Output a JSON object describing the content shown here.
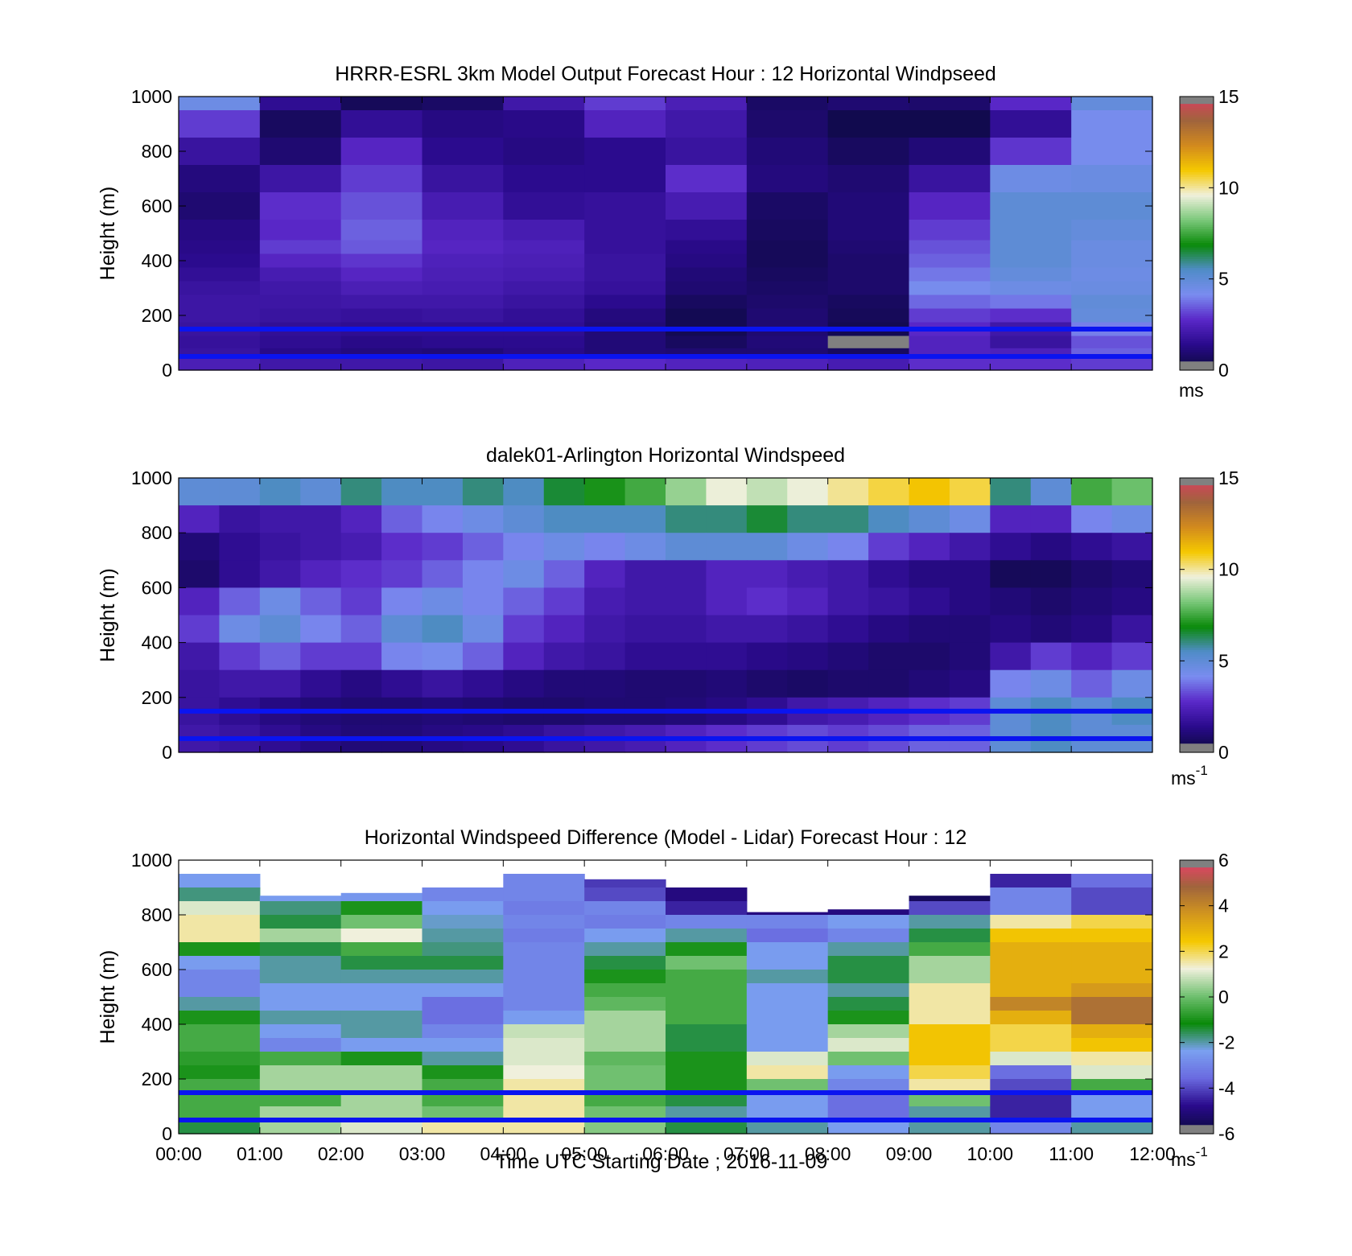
{
  "figure": {
    "xlabel": "Time UTC  Starting Date ; 2016-11-09",
    "x_ticks": [
      "00:00",
      "01:00",
      "02:00",
      "03:00",
      "04:00",
      "05:00",
      "06:00",
      "07:00",
      "08:00",
      "09:00",
      "10:00",
      "11:00",
      "12:00"
    ]
  },
  "colors": {
    "reference_line": "#0a14f0",
    "missing": "#808080",
    "no_data": "#ffffff",
    "speed_scale": [
      "#0a0a3c",
      "#2a0a8c",
      "#5a28c8",
      "#7a8cf0",
      "#508cc8",
      "#0a8a0a",
      "#7ac87a",
      "#f0f0dc",
      "#f5c800",
      "#d28a1e",
      "#a0643c",
      "#dc3c64"
    ],
    "diff_scale": [
      "#0a0a3c",
      "#2a0a8c",
      "#6a6ae0",
      "#7aa0f0",
      "#0a8a0a",
      "#70c070",
      "#f0f0dc",
      "#f5c800",
      "#d2961e",
      "#a0643c",
      "#f03c6e"
    ]
  },
  "chart_data": [
    {
      "type": "heatmap",
      "title": "HRRR-ESRL 3km Model Output   Forecast Hour : 12 Horizontal Windpseed",
      "ylabel": "Height (m)",
      "xlim": [
        0,
        12
      ],
      "ylim": [
        0,
        1000
      ],
      "y_ticks": [
        0,
        200,
        400,
        600,
        800,
        1000
      ],
      "y_tick_labels": [
        "0",
        "200",
        "400",
        "600",
        "800",
        "1000"
      ],
      "colorbar": {
        "ticks": [
          0,
          5,
          10,
          15
        ],
        "tick_labels": [
          "0",
          "5",
          "10",
          "15"
        ],
        "unit": "ms",
        "unit_sup": "",
        "range": [
          0,
          15
        ]
      },
      "reference_lines_m": [
        50,
        150
      ],
      "x_hours": [
        0,
        1,
        2,
        3,
        4,
        5,
        6,
        7,
        8,
        9,
        10,
        11
      ],
      "height_levels_m": [
        1000,
        900,
        800,
        700,
        600,
        500,
        450,
        400,
        350,
        300,
        250,
        200,
        150,
        100,
        60,
        30
      ],
      "values_ms": [
        [
          4.5,
          1.5,
          0.5,
          0.7,
          2.0,
          3.0,
          2.3,
          0.7,
          0.9,
          0.8,
          2.7,
          4.8
        ],
        [
          3.0,
          0.6,
          1.6,
          1.2,
          1.3,
          2.5,
          2.0,
          0.8,
          0.3,
          0.3,
          1.6,
          4.2
        ],
        [
          1.8,
          0.9,
          2.6,
          1.4,
          1.2,
          1.4,
          1.8,
          1.0,
          0.6,
          1.0,
          2.9,
          4.2
        ],
        [
          1.1,
          1.9,
          3.0,
          1.8,
          1.4,
          1.4,
          2.8,
          1.1,
          0.9,
          1.8,
          4.5,
          4.6
        ],
        [
          0.9,
          2.8,
          3.3,
          2.2,
          1.6,
          1.7,
          2.2,
          0.7,
          1.0,
          2.6,
          5.0,
          5.0
        ],
        [
          1.2,
          2.7,
          3.5,
          2.5,
          2.2,
          1.7,
          1.6,
          0.6,
          1.0,
          3.0,
          5.0,
          4.8
        ],
        [
          1.3,
          3.0,
          3.4,
          2.6,
          2.4,
          1.7,
          1.3,
          0.5,
          0.9,
          3.3,
          5.0,
          4.6
        ],
        [
          1.4,
          2.6,
          2.9,
          2.4,
          2.3,
          1.8,
          1.2,
          0.5,
          0.8,
          3.5,
          5.0,
          4.6
        ],
        [
          1.6,
          2.2,
          2.6,
          2.3,
          2.2,
          1.8,
          1.0,
          0.6,
          0.8,
          3.8,
          4.8,
          4.5
        ],
        [
          1.8,
          2.0,
          2.3,
          2.2,
          2.0,
          1.7,
          0.9,
          0.7,
          0.8,
          4.2,
          4.5,
          4.6
        ],
        [
          1.9,
          1.9,
          2.0,
          2.0,
          1.8,
          1.4,
          0.6,
          0.8,
          0.6,
          3.6,
          3.8,
          4.9
        ],
        [
          1.9,
          1.8,
          1.7,
          1.8,
          1.6,
          1.1,
          0.4,
          0.9,
          0.5,
          3.0,
          2.8,
          4.8
        ],
        [
          1.8,
          1.6,
          1.5,
          1.5,
          1.5,
          1.0,
          0.4,
          0.9,
          0.4,
          2.7,
          2.0,
          3.9
        ],
        [
          1.7,
          1.5,
          1.3,
          1.4,
          1.4,
          1.0,
          0.6,
          1.0,
          -1.0,
          2.5,
          1.8,
          3.3
        ],
        [
          1.8,
          1.3,
          1.1,
          1.0,
          1.3,
          1.0,
          0.9,
          0.9,
          0.6,
          2.5,
          2.4,
          3.5
        ],
        [
          2.3,
          2.0,
          2.0,
          1.9,
          2.4,
          2.7,
          2.5,
          2.4,
          2.2,
          2.8,
          2.8,
          3.0
        ]
      ]
    },
    {
      "type": "heatmap",
      "title": "dalek01-Arlington  Horizontal Windspeed",
      "ylabel": "Height (m)",
      "xlim": [
        0,
        12
      ],
      "ylim": [
        0,
        1000
      ],
      "y_ticks": [
        0,
        200,
        400,
        600,
        800,
        1000
      ],
      "y_tick_labels": [
        "0",
        "200",
        "400",
        "600",
        "800",
        "1000"
      ],
      "colorbar": {
        "ticks": [
          0,
          5,
          10,
          15
        ],
        "tick_labels": [
          "0",
          "5",
          "10",
          "15"
        ],
        "unit": "ms",
        "unit_sup": "-1",
        "range": [
          0,
          15
        ]
      },
      "reference_lines_m": [
        50,
        150
      ],
      "x_hours": [
        0.25,
        0.75,
        1.25,
        1.75,
        2.25,
        2.75,
        3.25,
        3.75,
        4.25,
        4.75,
        5.25,
        5.75,
        6.25,
        6.75,
        7.25,
        7.75,
        8.25,
        8.75,
        9.25,
        9.75,
        10.25,
        10.75,
        11.25,
        11.75
      ],
      "height_levels_m": [
        950,
        850,
        750,
        650,
        550,
        450,
        350,
        250,
        150,
        50
      ],
      "values_ms": [
        [
          5.0,
          5.0,
          5.5,
          5.0,
          6.0,
          5.5,
          5.5,
          6.0,
          5.5,
          6.5,
          7.0,
          7.5,
          8.5,
          9.5,
          9.0,
          9.5,
          10.0,
          10.5,
          11.0,
          10.5,
          6.0,
          5.0,
          7.5,
          8.0
        ],
        [
          2.5,
          1.8,
          2.0,
          2.0,
          2.5,
          3.5,
          4.0,
          4.5,
          5.0,
          5.5,
          5.5,
          5.5,
          6.0,
          6.0,
          6.5,
          6.0,
          6.0,
          5.5,
          5.0,
          4.5,
          2.5,
          2.5,
          4.0,
          4.5
        ],
        [
          1.0,
          1.5,
          1.8,
          2.0,
          2.2,
          2.8,
          3.0,
          3.5,
          4.0,
          4.5,
          4.0,
          4.5,
          5.0,
          5.0,
          5.0,
          4.5,
          4.0,
          3.0,
          2.5,
          2.0,
          1.5,
          1.2,
          1.5,
          1.8
        ],
        [
          0.8,
          1.5,
          2.0,
          2.5,
          2.8,
          3.0,
          3.5,
          4.0,
          4.5,
          3.5,
          2.5,
          2.0,
          2.0,
          2.5,
          2.5,
          2.2,
          2.0,
          1.5,
          1.2,
          1.2,
          0.5,
          0.5,
          0.8,
          1.0
        ],
        [
          2.5,
          3.5,
          4.5,
          3.5,
          3.0,
          4.0,
          4.5,
          4.0,
          3.5,
          3.0,
          2.2,
          2.0,
          2.0,
          2.5,
          2.8,
          2.5,
          2.0,
          1.8,
          1.5,
          1.2,
          1.0,
          0.8,
          1.0,
          1.2
        ],
        [
          3.0,
          4.5,
          5.0,
          4.0,
          3.5,
          5.0,
          5.5,
          4.5,
          3.0,
          2.5,
          2.0,
          1.8,
          1.8,
          2.0,
          2.0,
          1.8,
          1.5,
          1.2,
          1.0,
          1.0,
          1.2,
          1.0,
          1.2,
          1.8
        ],
        [
          2.0,
          3.0,
          3.5,
          3.0,
          3.0,
          4.0,
          4.2,
          3.5,
          2.5,
          2.0,
          1.8,
          1.5,
          1.5,
          1.5,
          1.3,
          1.2,
          1.0,
          0.8,
          0.8,
          1.0,
          2.0,
          3.0,
          2.5,
          3.0
        ],
        [
          1.8,
          2.0,
          2.0,
          1.5,
          1.2,
          1.5,
          1.8,
          1.5,
          1.2,
          1.0,
          1.0,
          0.9,
          0.9,
          1.0,
          0.8,
          0.7,
          0.8,
          0.8,
          1.0,
          1.2,
          4.0,
          4.5,
          3.5,
          4.5
        ],
        [
          1.8,
          1.5,
          1.2,
          1.0,
          0.9,
          0.9,
          1.0,
          0.9,
          0.8,
          0.8,
          0.9,
          0.9,
          1.0,
          1.2,
          1.5,
          2.0,
          2.2,
          2.5,
          2.8,
          3.0,
          5.0,
          5.5,
          5.0,
          5.5
        ],
        [
          2.0,
          1.8,
          1.5,
          1.2,
          1.0,
          1.0,
          1.2,
          1.3,
          1.5,
          1.8,
          2.0,
          2.2,
          2.5,
          2.8,
          3.0,
          3.2,
          3.0,
          3.2,
          3.5,
          3.5,
          5.0,
          5.5,
          5.0,
          5.0
        ]
      ]
    },
    {
      "type": "heatmap",
      "title": "Horizontal Windspeed Difference (Model - Lidar) Forecast Hour : 12",
      "ylabel": "Height (m)",
      "xlabel": "Time UTC  Starting Date ; 2016-11-09",
      "xlim": [
        0,
        12
      ],
      "ylim": [
        0,
        1000
      ],
      "y_ticks": [
        0,
        200,
        400,
        600,
        800,
        1000
      ],
      "y_tick_labels": [
        "0",
        "200",
        "400",
        "600",
        "800",
        "1000"
      ],
      "colorbar": {
        "ticks": [
          -6,
          -4,
          -2,
          0,
          2,
          4,
          6
        ],
        "tick_labels": [
          "-6",
          "-4",
          "-2",
          "0",
          "2",
          "4",
          "6"
        ],
        "unit": "ms",
        "unit_sup": "-1",
        "range": [
          -6,
          6
        ]
      },
      "reference_lines_m": [
        50,
        150
      ],
      "x_hours": [
        0,
        1,
        2,
        3,
        4,
        5,
        6,
        7,
        8,
        9,
        10,
        11
      ],
      "column_top_m": [
        960,
        870,
        880,
        900,
        960,
        930,
        900,
        810,
        820,
        870,
        990,
        1000
      ],
      "height_levels_m": [
        925,
        875,
        825,
        775,
        725,
        675,
        625,
        575,
        525,
        475,
        425,
        375,
        325,
        275,
        225,
        175,
        125,
        75,
        25
      ],
      "values_ms": [
        [
          -2.5,
          null,
          null,
          null,
          -3.0,
          -4.2,
          -5.5,
          null,
          null,
          -5.0,
          -4.5,
          -3.5
        ],
        [
          -1.8,
          -2.5,
          -2.6,
          -3.0,
          -3.0,
          -4.0,
          -5.0,
          null,
          null,
          -5.5,
          -3.0,
          -4.0
        ],
        [
          1.0,
          -1.8,
          -1.0,
          -2.5,
          -3.2,
          -3.0,
          -4.5,
          -5.0,
          -5.0,
          -4.0,
          -3.0,
          -4.0
        ],
        [
          1.5,
          -1.5,
          0.0,
          -2.2,
          -3.0,
          -3.2,
          -3.0,
          -3.0,
          -2.5,
          -2.0,
          1.5,
          2.0
        ],
        [
          1.5,
          0.5,
          1.2,
          -2.0,
          -3.2,
          -2.5,
          -2.0,
          -3.5,
          -3.0,
          -1.5,
          2.5,
          2.5
        ],
        [
          -1.0,
          -1.5,
          -0.5,
          -1.8,
          -3.0,
          -2.0,
          -1.0,
          -2.5,
          -2.0,
          -0.5,
          3.0,
          3.0
        ],
        [
          -2.5,
          -2.0,
          -1.5,
          -1.5,
          -3.0,
          -1.5,
          0.0,
          -2.5,
          -1.5,
          0.5,
          3.0,
          3.0
        ],
        [
          -3.0,
          -2.0,
          -2.0,
          -2.0,
          -3.0,
          -1.0,
          -0.5,
          -2.0,
          -1.5,
          0.5,
          3.0,
          3.0
        ],
        [
          -3.0,
          -2.5,
          -2.5,
          -2.5,
          -3.0,
          -0.5,
          -0.5,
          -2.5,
          -2.0,
          1.5,
          3.0,
          3.5
        ],
        [
          -2.0,
          -2.5,
          -2.5,
          -3.5,
          -3.0,
          -0.2,
          -0.5,
          -2.5,
          -1.5,
          1.5,
          4.0,
          4.5
        ],
        [
          -1.0,
          -2.0,
          -2.0,
          -3.5,
          -2.5,
          0.5,
          -0.5,
          -2.5,
          -1.0,
          1.5,
          3.0,
          4.5
        ],
        [
          -0.5,
          -2.5,
          -2.0,
          -3.0,
          0.8,
          0.5,
          -1.5,
          -2.5,
          0.5,
          2.5,
          2.0,
          3.0
        ],
        [
          -0.5,
          -3.0,
          -2.5,
          -2.5,
          1.0,
          0.5,
          -1.5,
          -2.5,
          1.0,
          2.5,
          2.0,
          2.5
        ],
        [
          -0.8,
          -0.5,
          -1.0,
          -2.0,
          1.0,
          -0.2,
          -1.0,
          1.0,
          0.0,
          2.5,
          1.0,
          1.5
        ],
        [
          -1.0,
          0.5,
          0.5,
          -1.0,
          1.2,
          0.0,
          -1.0,
          1.5,
          -2.5,
          2.0,
          -3.5,
          1.0
        ],
        [
          -0.5,
          0.5,
          0.5,
          -0.5,
          1.5,
          0.0,
          -1.0,
          0.0,
          -3.0,
          1.5,
          -4.0,
          -0.5
        ],
        [
          -0.5,
          -0.5,
          0.5,
          -0.5,
          1.5,
          -0.5,
          -1.5,
          -2.5,
          -3.5,
          0.0,
          -4.5,
          -2.5
        ],
        [
          -0.5,
          0.5,
          0.5,
          0.0,
          1.5,
          0.0,
          -2.0,
          -2.5,
          -3.5,
          -2.0,
          -4.5,
          -2.5
        ],
        [
          -1.5,
          0.5,
          1.0,
          1.5,
          1.5,
          0.2,
          -1.5,
          -2.0,
          -2.5,
          -2.0,
          -3.0,
          -2.0
        ]
      ]
    }
  ]
}
